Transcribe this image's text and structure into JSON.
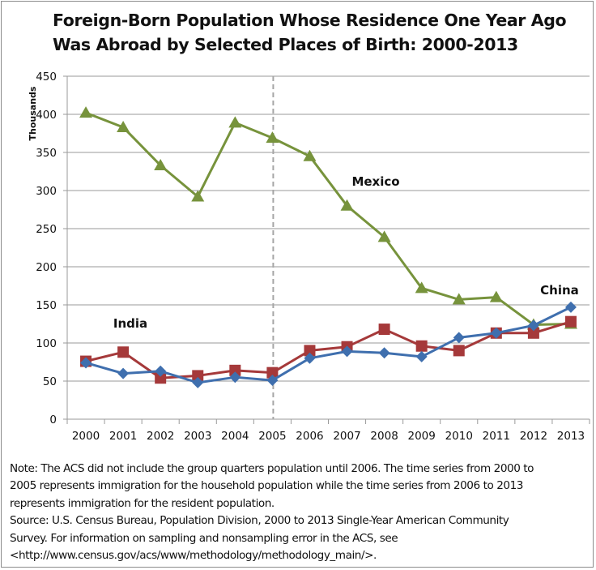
{
  "chart_data": {
    "type": "line",
    "title": "Foreign-Born Population Whose Residence One Year Ago Was Abroad by Selected Places of Birth: 2000-2013",
    "title_lines": [
      "Foreign-Born Population Whose Residence One Year Ago",
      "Was Abroad by Selected Places of Birth: 2000-2013"
    ],
    "xlabel": "",
    "ylabel": "Thousands",
    "ylim": [
      0,
      450
    ],
    "yticks": [
      0,
      50,
      100,
      150,
      200,
      250,
      300,
      350,
      400,
      450
    ],
    "categories": [
      "2000",
      "2001",
      "2002",
      "2003",
      "2004",
      "2005",
      "2006",
      "2007",
      "2008",
      "2009",
      "2010",
      "2011",
      "2012",
      "2013"
    ],
    "grid": true,
    "legend": "none (inline labels)",
    "reference_line": {
      "between": [
        "2005",
        "2006"
      ],
      "style": "dashed"
    },
    "series": [
      {
        "name": "Mexico",
        "label": "Mexico",
        "color": "#77933c",
        "marker": "triangle",
        "values": [
          402,
          383,
          333,
          292,
          389,
          369,
          345,
          280,
          239,
          172,
          157,
          160,
          124,
          125
        ]
      },
      {
        "name": "India",
        "label": "India",
        "color": "#a5393a",
        "marker": "square",
        "values": [
          76,
          88,
          54,
          57,
          64,
          61,
          90,
          95,
          118,
          96,
          90,
          113,
          113,
          128
        ]
      },
      {
        "name": "China",
        "label": "China",
        "color": "#3f6fae",
        "marker": "diamond",
        "values": [
          74,
          60,
          63,
          48,
          55,
          51,
          80,
          89,
          87,
          82,
          107,
          113,
          123,
          147
        ]
      }
    ],
    "annotations": [
      {
        "text": "Mexico",
        "series": "Mexico"
      },
      {
        "text": "India",
        "series": "India"
      },
      {
        "text": "China",
        "series": "China"
      }
    ]
  },
  "note_lines": [
    "Note: The ACS did not include the group quarters population until 2006. The time series from 2000 to",
    "2005 represents immigration for the household population while the time series from 2006 to 2013",
    "represents immigration for the resident population.",
    "Source: U.S. Census Bureau, Population Division, 2000 to 2013 Single-Year American Community",
    "Survey. For information on sampling and nonsampling error in the ACS, see",
    "<http://www.census.gov/acs/www/methodology/methodology_main/>."
  ]
}
